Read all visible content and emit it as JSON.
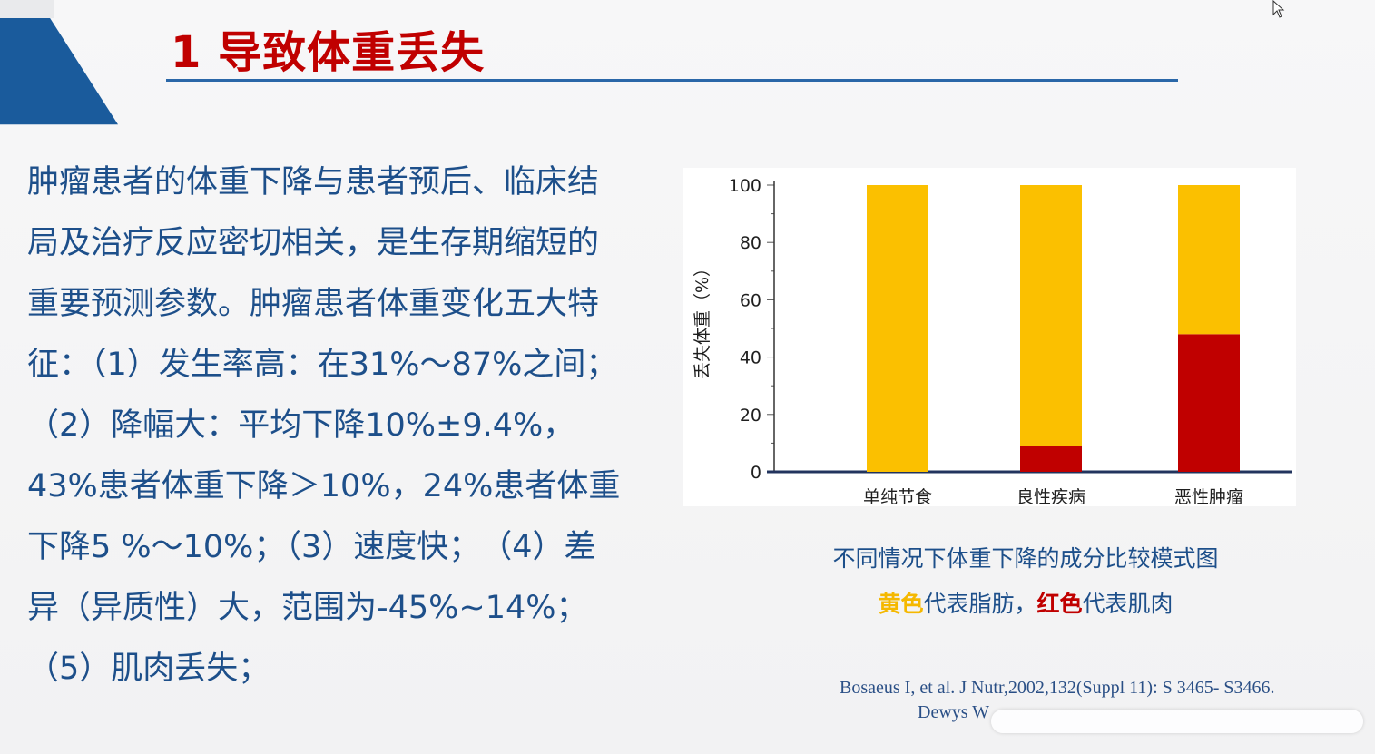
{
  "slide": {
    "title": "1 导致体重丢失",
    "body": "肿瘤患者的体重下降与患者预后、临床结局及治疗反应密切相关，是生存期缩短的重要预测参数。肿瘤患者体重变化五大特征：（1）发生率高：在31%～87%之间；（2）降幅大：平均下降10%±9.4%，43%患者体重下降＞10%，24%患者体重下降5 %～10%；（3）速度快；　（4）差异（异质性）大，范围为-45%~14%；（5）肌肉丢失；",
    "body_lines": [
      "肿瘤患者的体重下降与患者预后、临床结",
      "局及治疗反应密切相关，是生存期缩短的",
      "重要预测参数。肿瘤患者体重变化五大特",
      "征：（1）发生率高：在31%～87%之间；",
      "（2）降幅大：平均下降10%±9.4%，",
      "43%患者体重下降＞10%，24%患者体重",
      "下降5 %～10%；（3）速度快；　（4）差",
      "异（异质性）大，范围为-45%~14%；",
      "（5）肌肉丢失；"
    ]
  },
  "caption": {
    "line1": "不同情况下体重下降的成分比较模式图",
    "fat_word": "黄色",
    "fat_text": "代表脂肪，",
    "muscle_word": "红色",
    "muscle_text": "代表肌肉"
  },
  "references": {
    "line1": "Bosaeus I, et al. J Nutr,2002,132(Suppl 11): S 3465- S3466.",
    "line2": "Dewys W"
  },
  "chart_data": {
    "type": "bar",
    "stacked": true,
    "title": "",
    "xlabel": "",
    "ylabel": "丢失体重（%）",
    "ylim": [
      0,
      100
    ],
    "yticks": [
      0,
      20,
      40,
      60,
      80,
      100
    ],
    "categories": [
      "单纯节食",
      "良性疾病",
      "恶性肿瘤"
    ],
    "series": [
      {
        "key": "muscle",
        "color": "#c00000",
        "values": [
          0,
          9,
          48
        ]
      },
      {
        "key": "fat",
        "color": "#fbc000",
        "values": [
          100,
          91,
          52
        ]
      }
    ],
    "grid": false
  }
}
